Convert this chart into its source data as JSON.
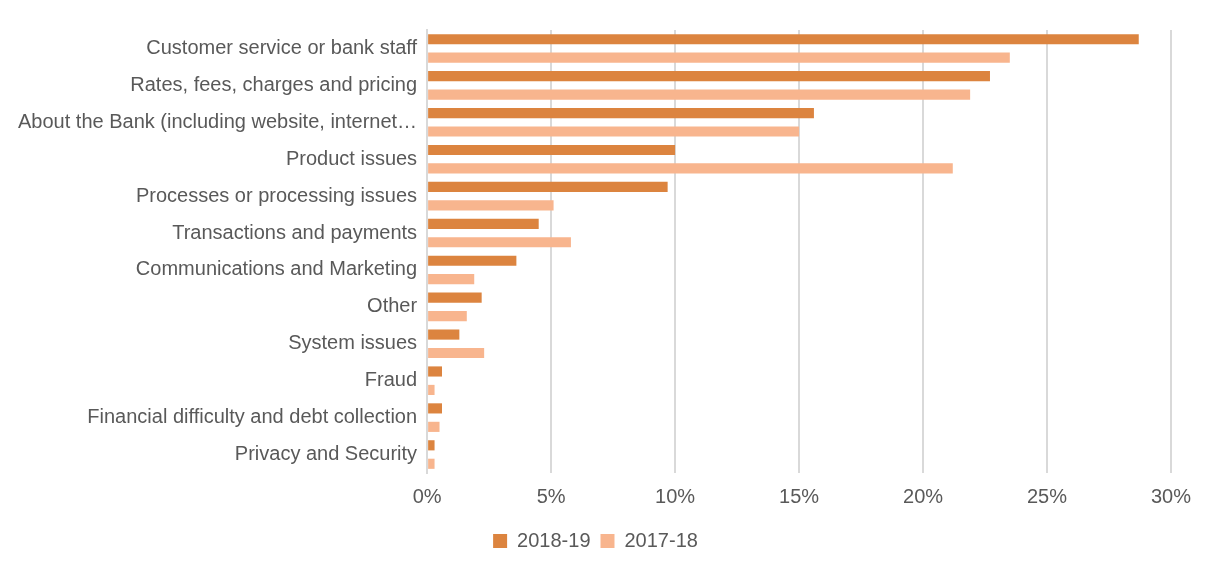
{
  "chart_data": {
    "type": "bar",
    "orientation": "horizontal",
    "categories": [
      "Customer service or bank staff",
      "Rates, fees, charges and pricing",
      "About the Bank (including website, internet…",
      "Product issues",
      "Processes or processing issues",
      "Transactions and payments",
      "Communications and Marketing",
      "Other",
      "System issues",
      "Fraud",
      "Financial difficulty and debt collection",
      "Privacy and Security"
    ],
    "series": [
      {
        "name": "2018-19",
        "color": "#dc843f",
        "values": [
          28.7,
          22.7,
          15.6,
          10.0,
          9.7,
          4.5,
          3.6,
          2.2,
          1.3,
          0.6,
          0.6,
          0.3
        ]
      },
      {
        "name": "2017-18",
        "color": "#f8b58e",
        "values": [
          23.5,
          21.9,
          15.0,
          21.2,
          5.1,
          5.8,
          1.9,
          1.6,
          2.3,
          0.3,
          0.5,
          0.3
        ]
      }
    ],
    "xlim": [
      0,
      30
    ],
    "xticks": [
      {
        "value": 0,
        "label": "0%"
      },
      {
        "value": 5,
        "label": "5%"
      },
      {
        "value": 10,
        "label": "10%"
      },
      {
        "value": 15,
        "label": "15%"
      },
      {
        "value": 20,
        "label": "20%"
      },
      {
        "value": 25,
        "label": "25%"
      },
      {
        "value": 30,
        "label": "30%"
      }
    ],
    "grid": "x",
    "legend": "bottom"
  }
}
